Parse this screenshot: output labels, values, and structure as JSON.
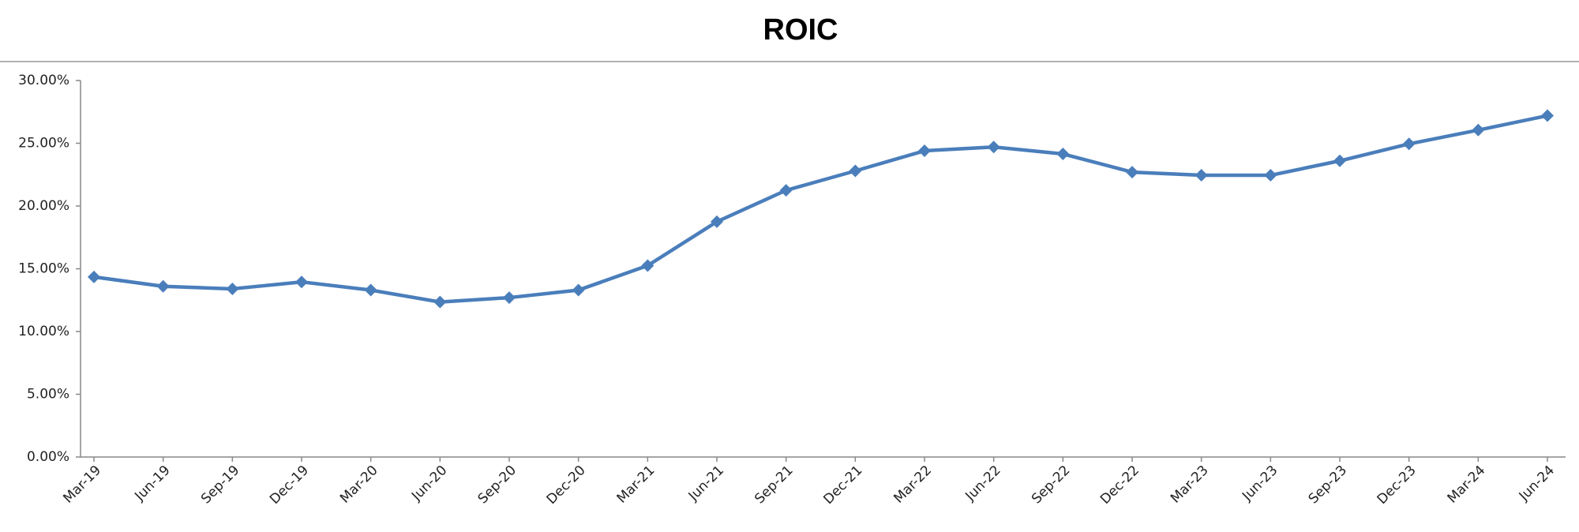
{
  "chart_data": {
    "type": "line",
    "title": "ROIC",
    "categories": [
      "Mar-19",
      "Jun-19",
      "Sep-19",
      "Dec-19",
      "Mar-20",
      "Jun-20",
      "Sep-20",
      "Dec-20",
      "Mar-21",
      "Jun-21",
      "Sep-21",
      "Dec-21",
      "Mar-22",
      "Jun-22",
      "Sep-22",
      "Dec-22",
      "Mar-23",
      "Jun-23",
      "Sep-23",
      "Dec-23",
      "Mar-24",
      "Jun-24"
    ],
    "series": [
      {
        "color": "#4a7ebb",
        "values": [
          14.35,
          13.6,
          13.4,
          13.95,
          13.3,
          12.35,
          12.7,
          13.3,
          15.25,
          18.75,
          21.25,
          22.8,
          24.4,
          24.7,
          24.15,
          22.7,
          22.45,
          22.45,
          23.6,
          24.95,
          26.05,
          27.2
        ]
      }
    ],
    "ylim": [
      0,
      30
    ],
    "yticks": [
      {
        "value": 0,
        "label": "0.00%"
      },
      {
        "value": 5,
        "label": "5.00%"
      },
      {
        "value": 10,
        "label": "10.00%"
      },
      {
        "value": 15,
        "label": "15.00%"
      },
      {
        "value": 20,
        "label": "20.00%"
      },
      {
        "value": 25,
        "label": "25.00%"
      },
      {
        "value": 30,
        "label": "30.00%"
      }
    ],
    "grid": false
  }
}
